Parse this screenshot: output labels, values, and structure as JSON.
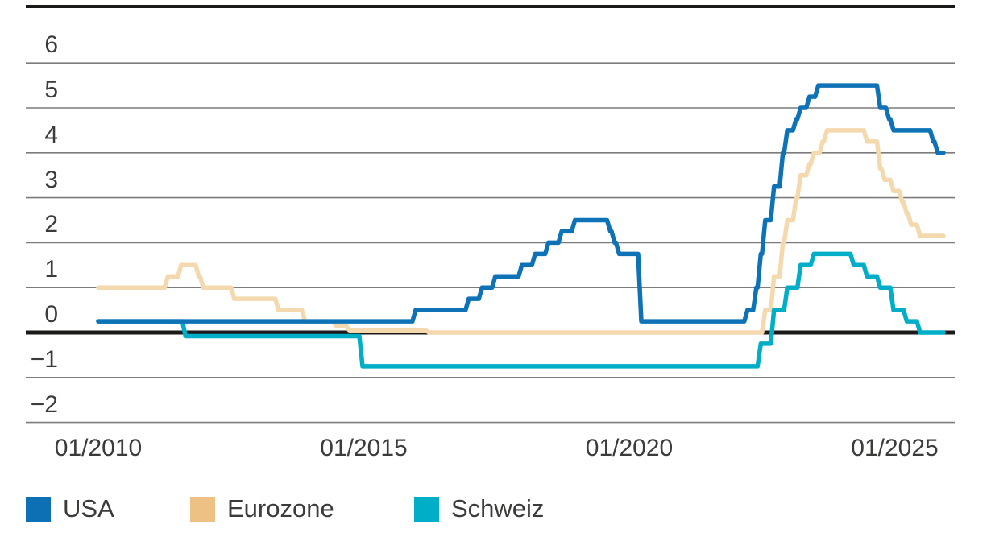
{
  "chart_data": {
    "type": "line",
    "title": "",
    "xlabel": "",
    "ylabel": "",
    "y_ticks": [
      6,
      5,
      4,
      3,
      2,
      1,
      0,
      -1,
      -2
    ],
    "y_tick_labels": [
      "6",
      "5",
      "4",
      "3",
      "2",
      "1",
      "0",
      "−1",
      "−2"
    ],
    "ylim": [
      -2,
      6
    ],
    "x_ticks": [
      {
        "label": "01/2010",
        "year": 2010
      },
      {
        "label": "01/2015",
        "year": 2015
      },
      {
        "label": "01/2020",
        "year": 2020
      },
      {
        "label": "01/2025",
        "year": 2025
      }
    ],
    "x_range": {
      "start": "2010-01",
      "end": "2025-12"
    },
    "grid": true,
    "legend_position": "bottom",
    "series": [
      {
        "name": "Eurozone",
        "color": "#edc083",
        "line_color": "#f4d9ae",
        "points": [
          [
            "2010-01",
            1.0
          ],
          [
            "2011-04",
            1.25
          ],
          [
            "2011-07",
            1.5
          ],
          [
            "2011-11",
            1.25
          ],
          [
            "2011-12",
            1.0
          ],
          [
            "2012-07",
            0.75
          ],
          [
            "2013-05",
            0.5
          ],
          [
            "2013-11",
            0.25
          ],
          [
            "2014-06",
            0.15
          ],
          [
            "2014-09",
            0.05
          ],
          [
            "2016-03",
            0.0
          ],
          [
            "2022-07",
            0.5
          ],
          [
            "2022-09",
            1.25
          ],
          [
            "2022-11",
            2.0
          ],
          [
            "2022-12",
            2.5
          ],
          [
            "2023-02",
            3.0
          ],
          [
            "2023-03",
            3.5
          ],
          [
            "2023-05",
            3.75
          ],
          [
            "2023-06",
            4.0
          ],
          [
            "2023-08",
            4.25
          ],
          [
            "2023-09",
            4.5
          ],
          [
            "2024-06",
            4.25
          ],
          [
            "2024-09",
            3.65
          ],
          [
            "2024-10",
            3.4
          ],
          [
            "2024-12",
            3.15
          ],
          [
            "2025-02",
            2.9
          ],
          [
            "2025-03",
            2.65
          ],
          [
            "2025-04",
            2.4
          ],
          [
            "2025-06",
            2.15
          ]
        ]
      },
      {
        "name": "Schweiz",
        "color": "#00aec8",
        "line_color": "#00aec8",
        "points": [
          [
            "2010-01",
            0.25
          ],
          [
            "2011-08",
            -0.08
          ],
          [
            "2014-12",
            -0.75
          ],
          [
            "2022-06",
            -0.25
          ],
          [
            "2022-09",
            0.5
          ],
          [
            "2022-12",
            1.0
          ],
          [
            "2023-03",
            1.5
          ],
          [
            "2023-06",
            1.75
          ],
          [
            "2024-03",
            1.5
          ],
          [
            "2024-06",
            1.25
          ],
          [
            "2024-09",
            1.0
          ],
          [
            "2024-12",
            0.5
          ],
          [
            "2025-03",
            0.25
          ],
          [
            "2025-06",
            0.0
          ]
        ]
      },
      {
        "name": "USA",
        "color": "#0d70b5",
        "line_color": "#0e72b7",
        "points": [
          [
            "2010-01",
            0.25
          ],
          [
            "2015-12",
            0.5
          ],
          [
            "2016-12",
            0.75
          ],
          [
            "2017-03",
            1.0
          ],
          [
            "2017-06",
            1.25
          ],
          [
            "2017-12",
            1.5
          ],
          [
            "2018-03",
            1.75
          ],
          [
            "2018-06",
            2.0
          ],
          [
            "2018-09",
            2.25
          ],
          [
            "2018-12",
            2.5
          ],
          [
            "2019-08",
            2.25
          ],
          [
            "2019-09",
            2.0
          ],
          [
            "2019-10",
            1.75
          ],
          [
            "2020-03",
            0.25
          ],
          [
            "2022-03",
            0.5
          ],
          [
            "2022-05",
            1.0
          ],
          [
            "2022-06",
            1.75
          ],
          [
            "2022-07",
            2.5
          ],
          [
            "2022-09",
            3.25
          ],
          [
            "2022-11",
            4.0
          ],
          [
            "2022-12",
            4.5
          ],
          [
            "2023-02",
            4.75
          ],
          [
            "2023-03",
            5.0
          ],
          [
            "2023-05",
            5.25
          ],
          [
            "2023-07",
            5.5
          ],
          [
            "2024-09",
            5.0
          ],
          [
            "2024-11",
            4.75
          ],
          [
            "2024-12",
            4.5
          ],
          [
            "2025-09",
            4.25
          ],
          [
            "2025-10",
            4.0
          ]
        ]
      }
    ],
    "legend_order": [
      "USA",
      "Eurozone",
      "Schweiz"
    ]
  },
  "colors": {
    "gridline": "#7c7c7c",
    "zero_line": "#1a1a18",
    "top_rule": "#1a1a18",
    "axis_text": "#3b3b3a",
    "background": "#ffffff"
  }
}
